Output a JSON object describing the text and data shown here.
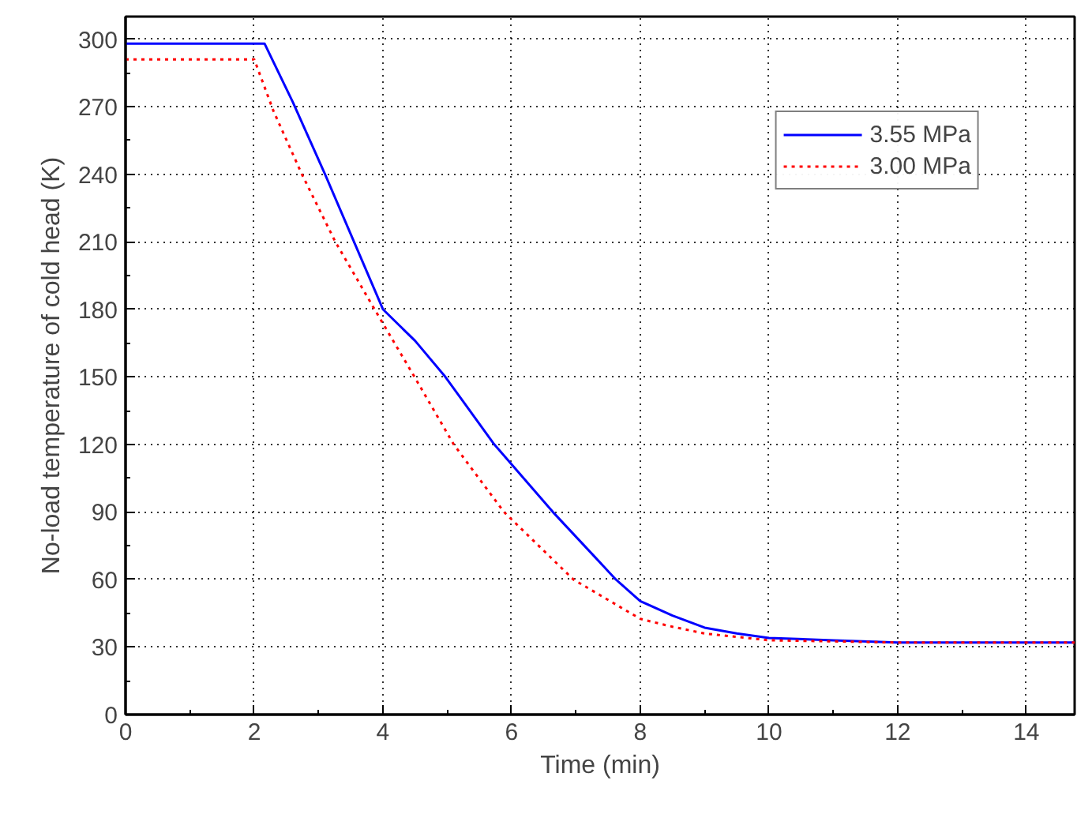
{
  "chart_data": {
    "type": "line",
    "xlabel": "Time (min)",
    "ylabel": "No-load temperature of cold head (K)",
    "xlim": [
      0,
      14.75
    ],
    "xticks": [
      0,
      2,
      4,
      6,
      8,
      10,
      12,
      14
    ],
    "ylim": [
      0,
      310
    ],
    "yticks": [
      0,
      30,
      60,
      90,
      120,
      150,
      180,
      210,
      240,
      270,
      300
    ],
    "grid": true,
    "legend": "top right",
    "series": [
      {
        "name": "3.55 MPa",
        "color": "#0000ff",
        "line_style": "solid",
        "x": [
          0,
          2.16,
          2.6,
          3.1,
          3.55,
          4.0,
          4.5,
          4.97,
          5.73,
          6.64,
          7.62,
          8,
          8.5,
          9,
          9.5,
          10,
          11,
          12,
          13,
          14.75
        ],
        "values": [
          298,
          298,
          272,
          240,
          210,
          180,
          166,
          150,
          120,
          90,
          60,
          50.4,
          44,
          38.6,
          36,
          34,
          33,
          32,
          32,
          32
        ]
      },
      {
        "name": "3.00 MPa",
        "color": "#ff0000",
        "line_style": "dotted",
        "x": [
          0,
          2.0,
          2.3,
          2.74,
          3.26,
          3.87,
          4.49,
          5.1,
          5.88,
          6.96,
          8,
          8.5,
          9,
          10,
          11,
          12,
          13,
          14.75
        ],
        "values": [
          291,
          291,
          268,
          240,
          210,
          180,
          150,
          120,
          90,
          60,
          42.5,
          39,
          36,
          33,
          32.5,
          32,
          32,
          32
        ]
      }
    ]
  }
}
